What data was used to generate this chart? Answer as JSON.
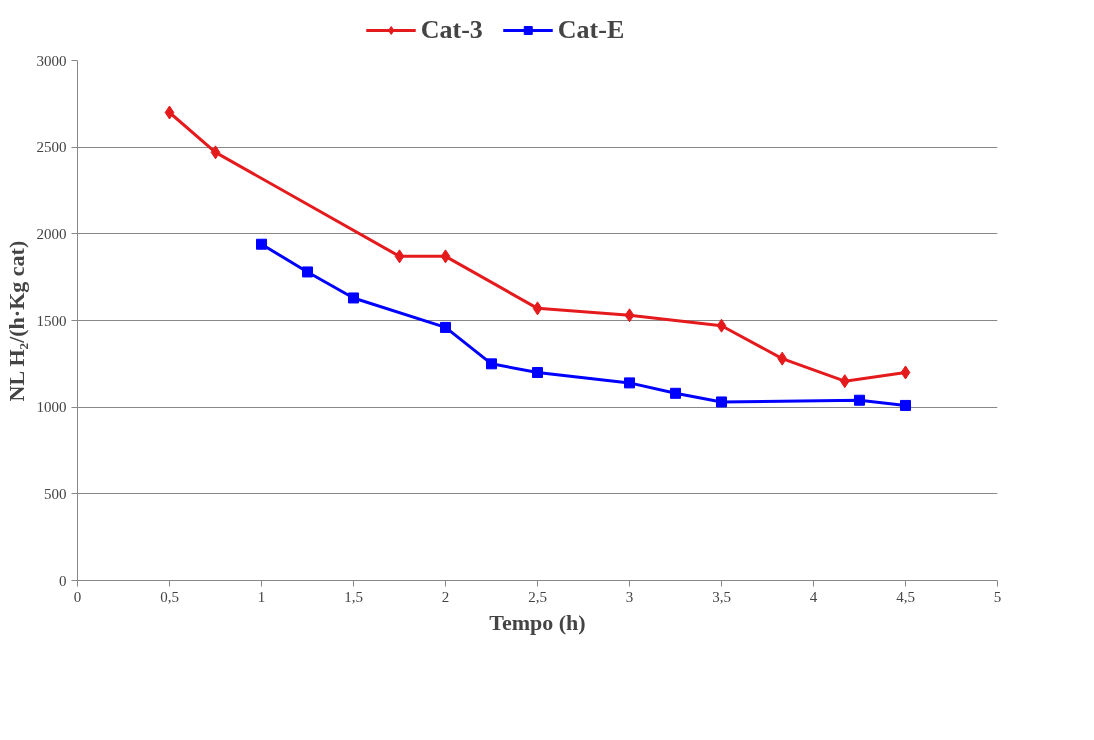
{
  "chart_data": {
    "type": "line",
    "xlabel": "Tempo (h)",
    "ylabel": "NL H₂/(h·Kg cat)",
    "xlim": [
      0,
      5
    ],
    "ylim": [
      0,
      3000
    ],
    "xticks": [
      0,
      {
        "value": 0.5,
        "label": "0,5"
      },
      1,
      {
        "value": 1.5,
        "label": "1,5"
      },
      2,
      {
        "value": 2.5,
        "label": "2,5"
      },
      3,
      {
        "value": 3.5,
        "label": "3,5"
      },
      4,
      {
        "value": 4.5,
        "label": "4,5"
      },
      5
    ],
    "yticks": [
      0,
      500,
      1000,
      1500,
      2000,
      2500,
      3000
    ],
    "grid": "y",
    "legend": "top",
    "series": [
      {
        "name": "Cat-3",
        "color": "#e41a1c",
        "marker": "diamond",
        "x": [
          0.5,
          0.75,
          1.75,
          2,
          2.5,
          3,
          3.5,
          3.83,
          4.17,
          4.5
        ],
        "values": [
          2700,
          2470,
          1870,
          1870,
          1570,
          1530,
          1470,
          1280,
          1150,
          1200
        ]
      },
      {
        "name": "Cat-E",
        "color": "#0000ff",
        "marker": "square",
        "x": [
          1,
          1.25,
          1.5,
          2,
          2.25,
          2.5,
          3,
          3.25,
          3.5,
          4.25,
          4.5
        ],
        "values": [
          1940,
          1780,
          1630,
          1460,
          1250,
          1200,
          1140,
          1080,
          1030,
          1040,
          1010
        ]
      }
    ]
  }
}
